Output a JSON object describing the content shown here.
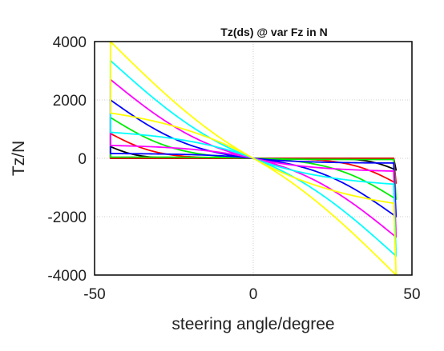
{
  "chart_data": {
    "type": "line",
    "title": "Tz(ds) @ var Fz in N",
    "xlabel": "steering angle/degree",
    "ylabel": "Tz/N",
    "xlim": [
      -50,
      50
    ],
    "ylim": [
      -4000,
      4000
    ],
    "xticks": [
      "-50",
      "0",
      "50"
    ],
    "yticks": [
      "4000",
      "2000",
      "0",
      "-2000",
      "-4000"
    ],
    "grid": true,
    "legend": "none",
    "series": [
      {
        "color": "#000000",
        "plateau": 400,
        "sharpness": 5.0
      },
      {
        "color": "#ff0000",
        "plateau": 850,
        "sharpness": 3.0
      },
      {
        "color": "#00ee00",
        "plateau": 1400,
        "sharpness": 2.1
      },
      {
        "color": "#0000ff",
        "plateau": 2000,
        "sharpness": 1.6
      },
      {
        "color": "#ff00ff",
        "plateau": 2700,
        "sharpness": 1.25
      },
      {
        "color": "#00ffff",
        "plateau": 3350,
        "sharpness": 1.0
      },
      {
        "color": "#ffff00",
        "plateau": 4000,
        "sharpness": 0.8
      }
    ],
    "series_note": "Each hysteresis loop spans steering angle -45 to 45"
  }
}
